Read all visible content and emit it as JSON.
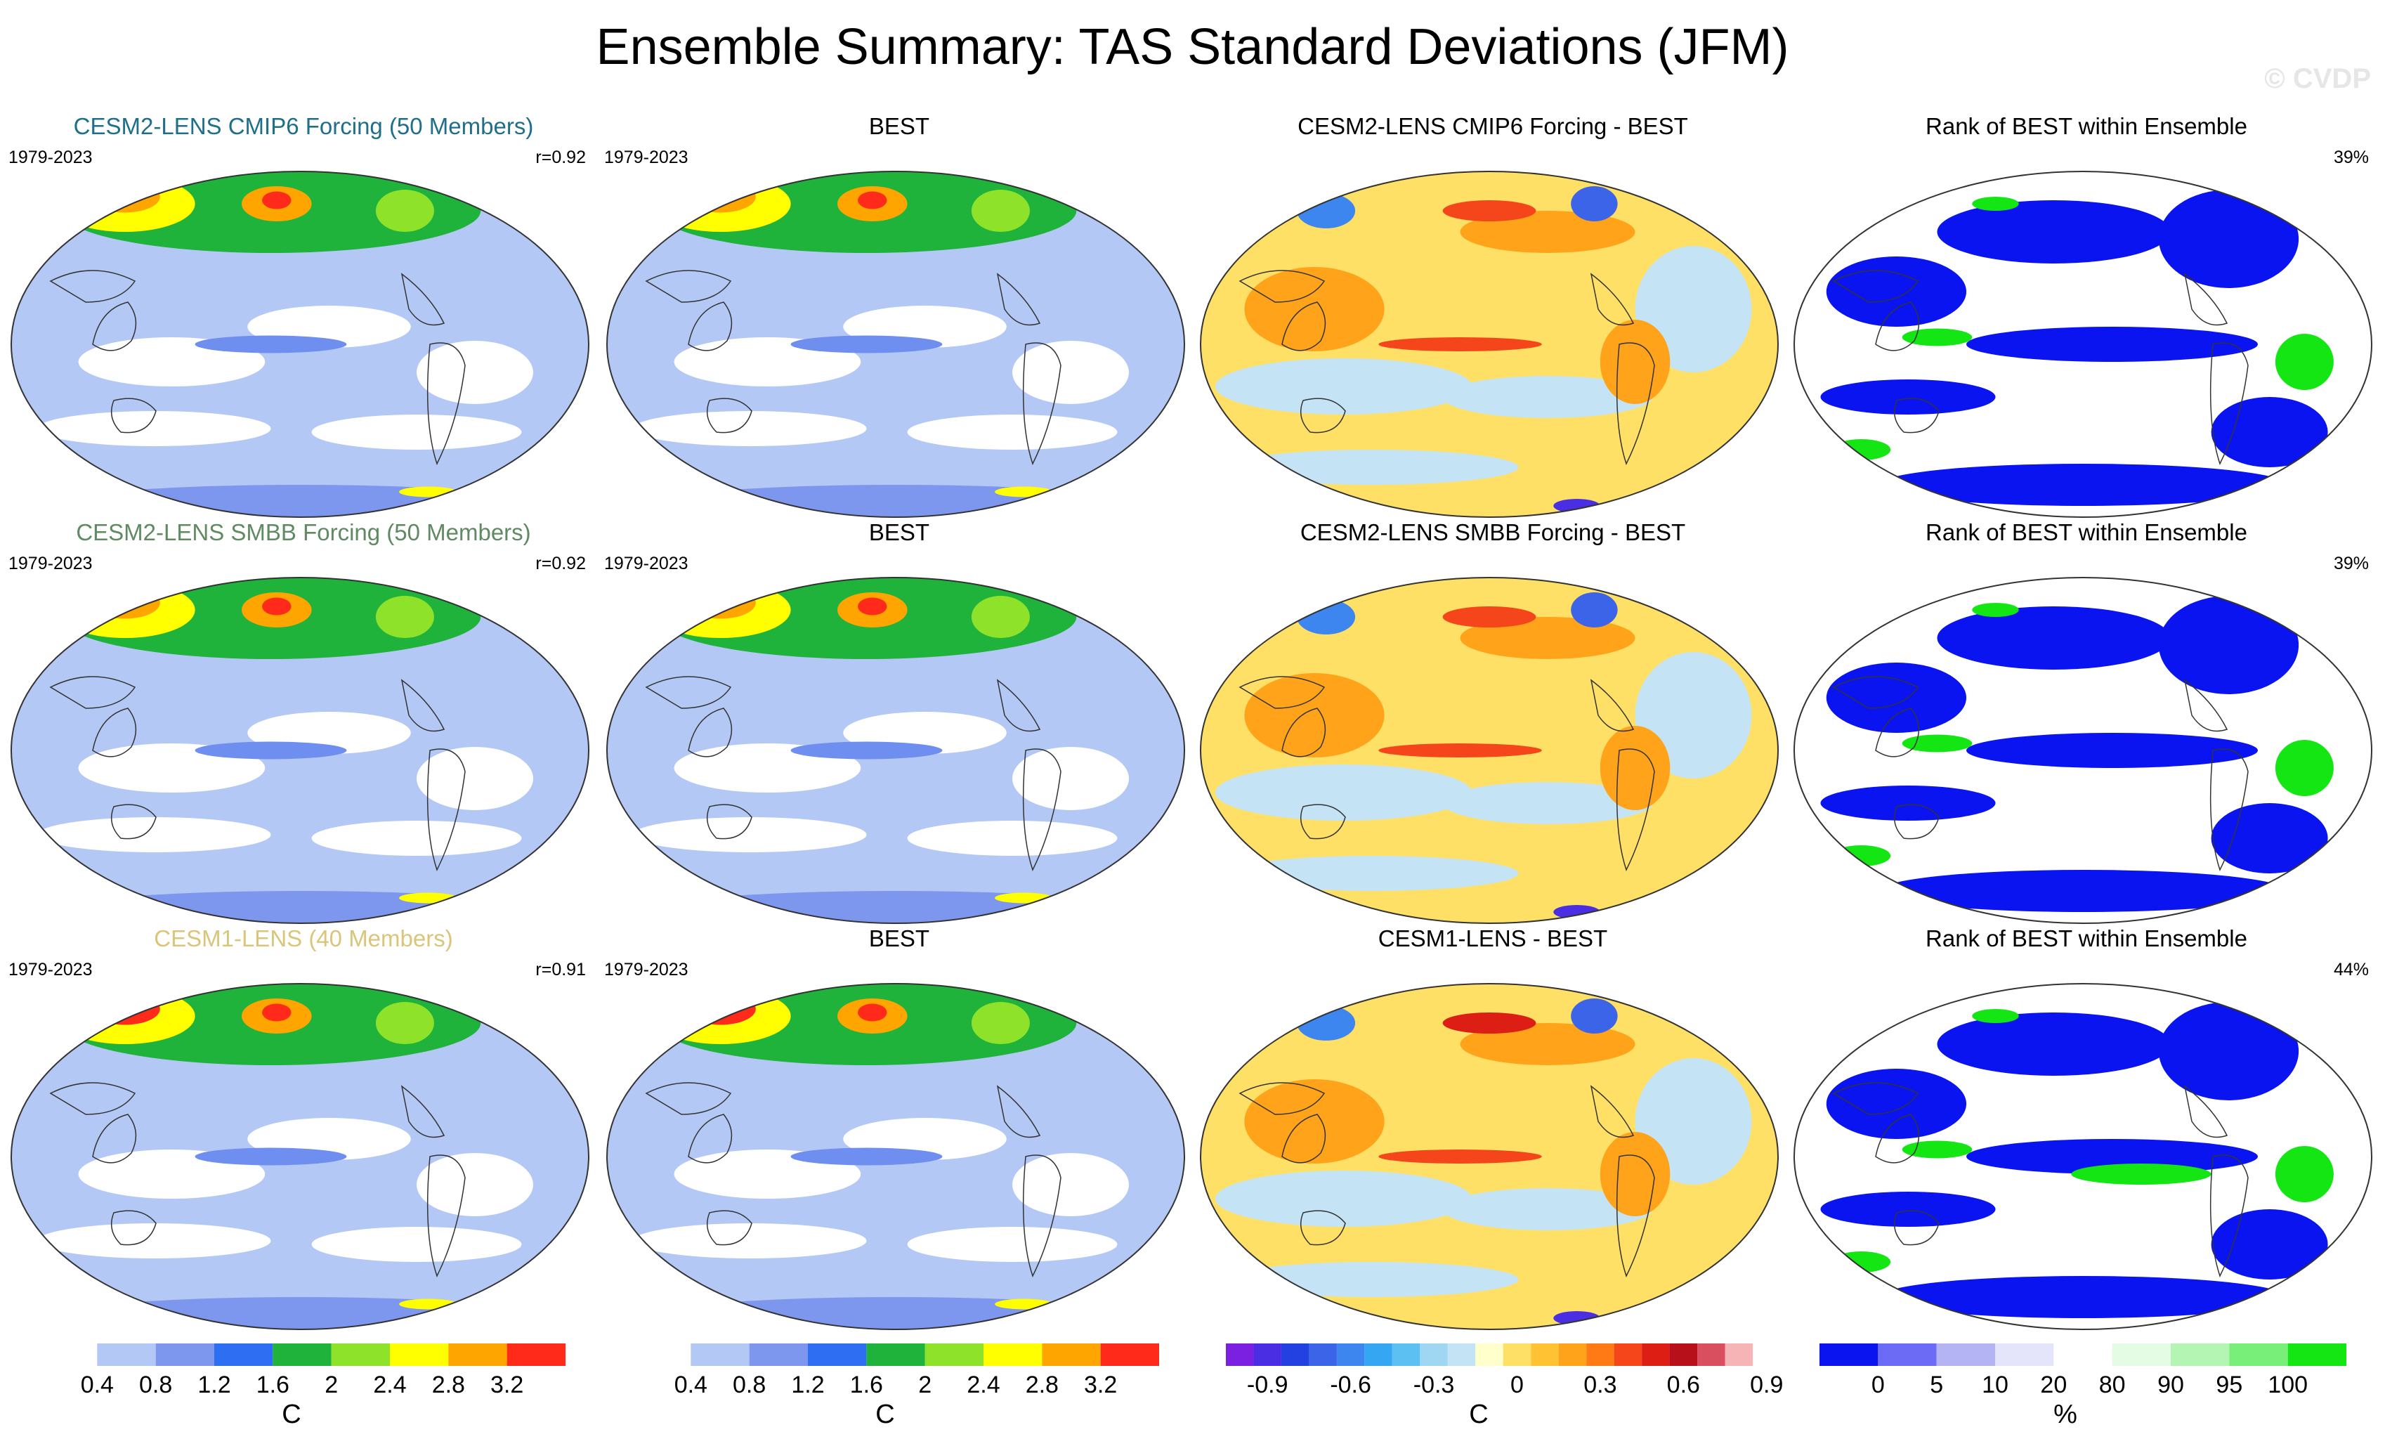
{
  "title": "Ensemble Summary: TAS Standard Deviations (JFM)",
  "watermark": "© CVDP",
  "rows": [
    {
      "model_title": "CESM2-LENS CMIP6 Forcing (50 Members)",
      "model_title_color": "#1f6f8b",
      "period": "1979-2023",
      "r": "r=0.92",
      "obs_title": "BEST",
      "obs_period": "1979-2023",
      "diff_title": "CESM2-LENS CMIP6 Forcing - BEST",
      "rank_title": "Rank of BEST within Ensemble",
      "rank_pct": "39%"
    },
    {
      "model_title": "CESM2-LENS SMBB Forcing (50 Members)",
      "model_title_color": "#5f8a62",
      "period": "1979-2023",
      "r": "r=0.92",
      "obs_title": "BEST",
      "obs_period": "1979-2023",
      "diff_title": "CESM2-LENS SMBB Forcing - BEST",
      "rank_title": "Rank of BEST within Ensemble",
      "rank_pct": "39%"
    },
    {
      "model_title": "CESM1-LENS (40 Members)",
      "model_title_color": "#d9c67a",
      "period": "1979-2023",
      "r": "r=0.91",
      "obs_title": "BEST",
      "obs_period": "1979-2023",
      "diff_title": "CESM1-LENS - BEST",
      "rank_title": "Rank of BEST within Ensemble",
      "rank_pct": "44%"
    }
  ],
  "colorbars": {
    "std": {
      "unit": "C",
      "colors": [
        "#ffffff",
        "#b4c8f5",
        "#7d96ee",
        "#2d6ef2",
        "#1fb33c",
        "#8ee22a",
        "#ffff00",
        "#ffa500",
        "#ff2a1a"
      ],
      "ticks": [
        "0.4",
        "0.8",
        "1.2",
        "1.6",
        "2",
        "2.4",
        "2.8",
        "3.2"
      ]
    },
    "diff": {
      "unit": "C",
      "colors": [
        "#7b1fe0",
        "#4a2ee3",
        "#2340e0",
        "#3c64e8",
        "#3d86ef",
        "#35a6f2",
        "#5cc1f2",
        "#9fd6f2",
        "#c4e4f5",
        "#ffffcc",
        "#ffe066",
        "#ffc233",
        "#ffa31a",
        "#ff7a14",
        "#f5451a",
        "#dc1e14",
        "#b8101a",
        "#d94f5f",
        "#f6b4b7"
      ],
      "ticks": [
        "-0.9",
        "-0.6",
        "-0.3",
        "0",
        "0.3",
        "0.6",
        "0.9"
      ]
    },
    "rank": {
      "unit": "%",
      "colors": [
        "#0a14f0",
        "#6b6bf5",
        "#b4b4f5",
        "#e4e4fb",
        "#ffffff",
        "#e4fbe4",
        "#b4f5b4",
        "#78ef78",
        "#14e614"
      ],
      "ticks": [
        "0",
        "5",
        "10",
        "20",
        "80",
        "90",
        "95",
        "100"
      ]
    }
  }
}
